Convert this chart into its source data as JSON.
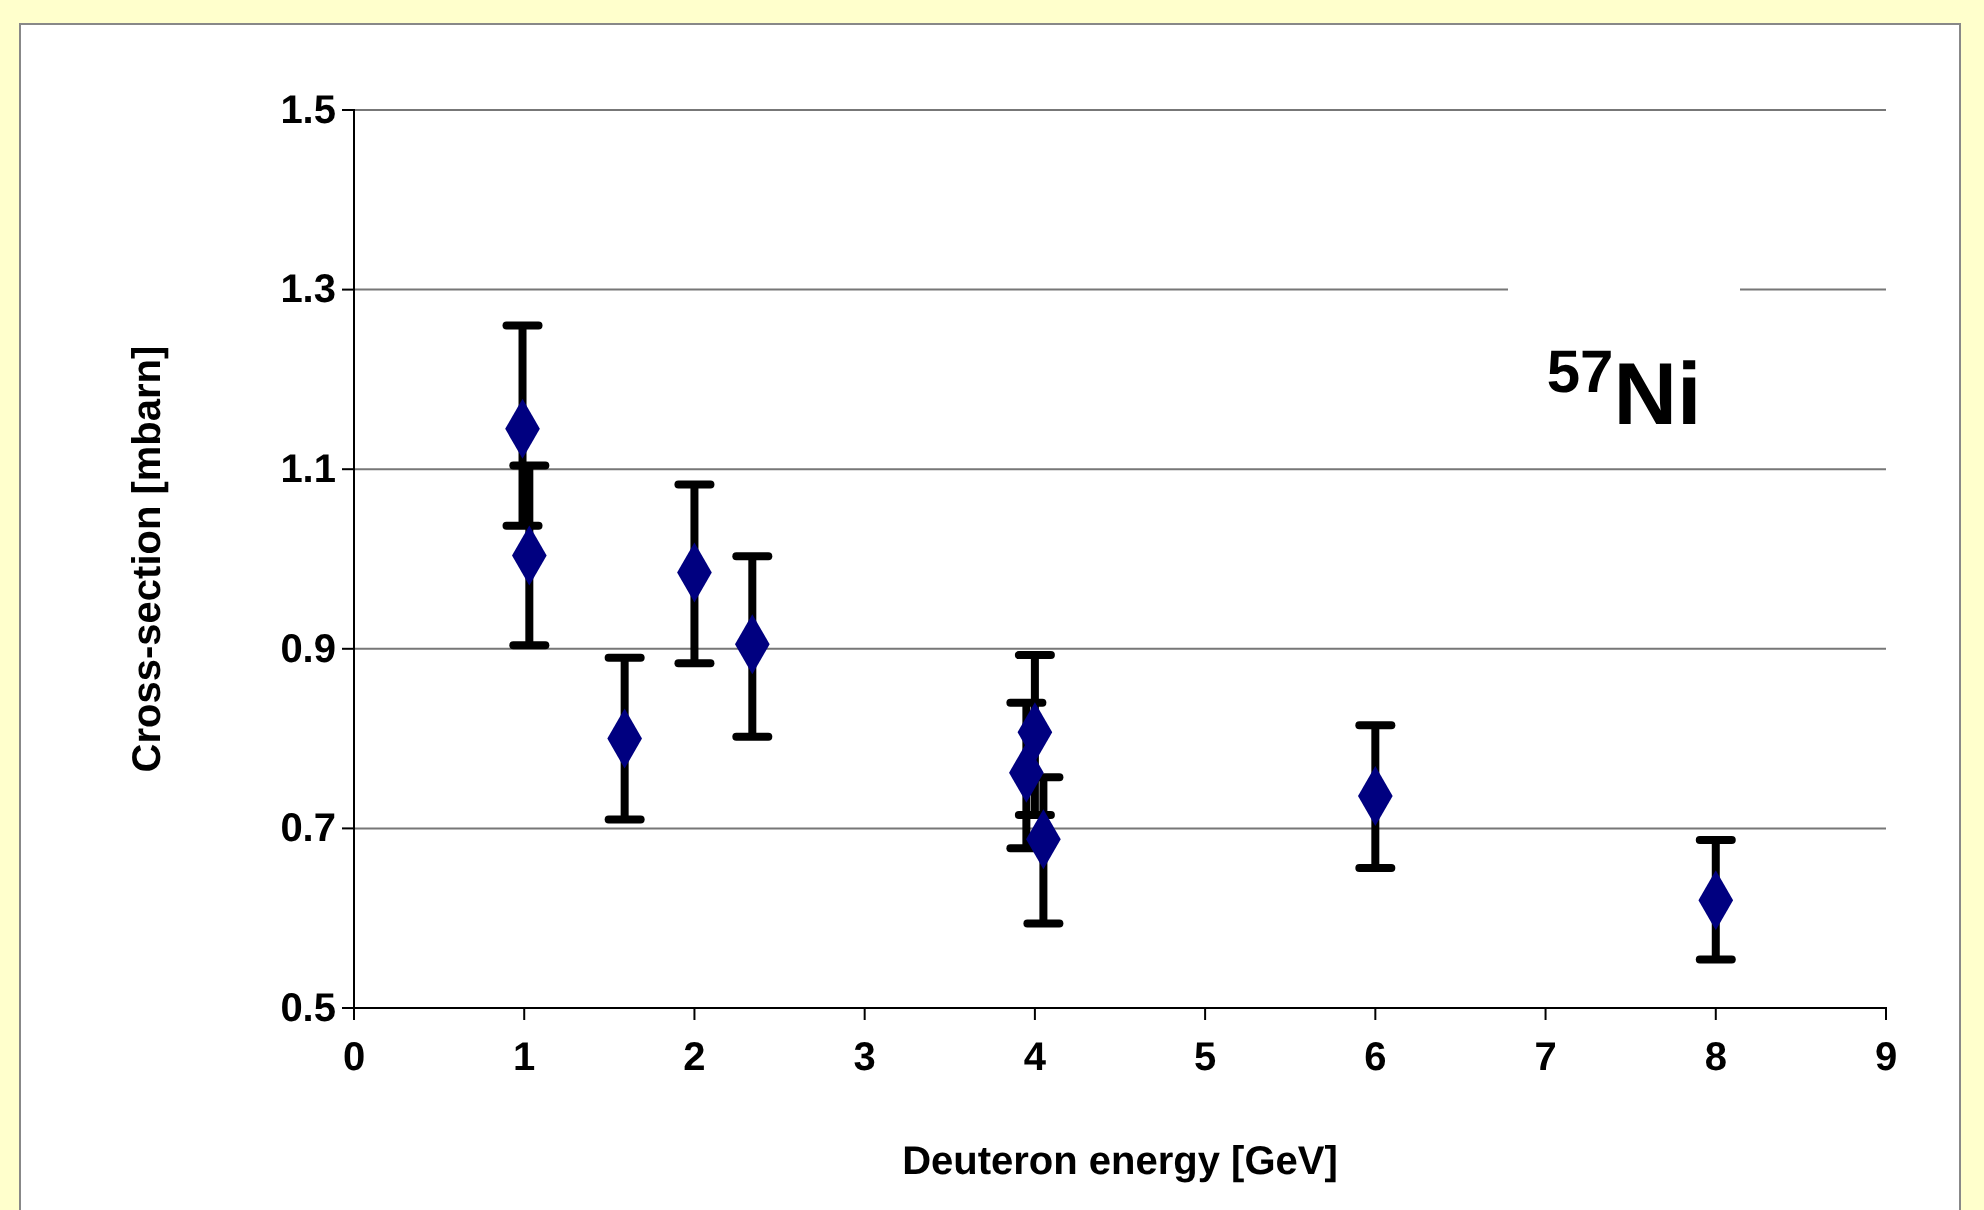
{
  "chart_data": {
    "type": "scatter",
    "xlabel": "Deuteron energy [GeV]",
    "ylabel": "Cross-section [mbarn]",
    "x": [
      0.99,
      1.03,
      1.59,
      2.0,
      2.34,
      3.95,
      4.0,
      4.05,
      6.0,
      8.0
    ],
    "series": [
      {
        "color": "#000080",
        "values": [
          1.145,
          1.004,
          0.8,
          0.985,
          0.905,
          0.762,
          0.807,
          0.688,
          0.736,
          0.62
        ],
        "errors": [
          [
            1.037,
            1.26
          ],
          [
            0.904,
            1.104
          ],
          [
            0.71,
            0.89
          ],
          [
            0.884,
            1.083
          ],
          [
            0.802,
            1.003
          ],
          [
            0.678,
            0.84
          ],
          [
            0.715,
            0.893
          ],
          [
            0.594,
            0.757
          ],
          [
            0.656,
            0.815
          ],
          [
            0.554,
            0.687
          ]
        ]
      }
    ],
    "xlim": [
      0,
      9
    ],
    "xticks": [
      0,
      1,
      2,
      3,
      4,
      5,
      6,
      7,
      8,
      9
    ],
    "ylim": [
      0.5,
      1.5
    ],
    "yticks": [
      0.5,
      0.7,
      0.9,
      1.1,
      1.3,
      1.5
    ],
    "grid": "y",
    "marker": "diamond",
    "annotations": [
      "$^{57}$Ni"
    ]
  }
}
